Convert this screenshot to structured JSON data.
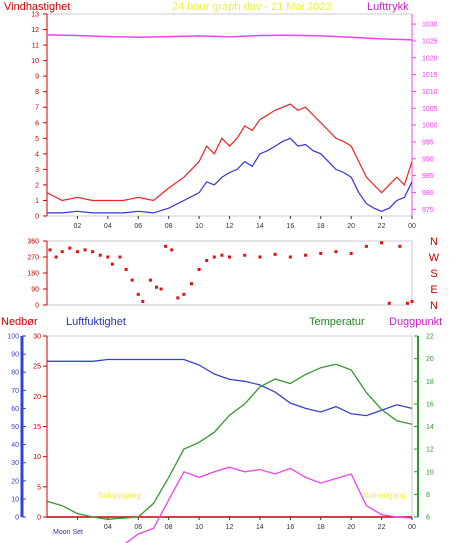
{
  "header": {
    "wind_label": "Vindhastighet",
    "title": "24 hour graph dav - 21 Mai 2023",
    "pressure_label": "Lufttrykk"
  },
  "mid_labels": {
    "rain": "Nedbør",
    "humidity": "Luftfuktighet",
    "temperature": "Temperatur",
    "dewpoint": "Duggpunkt"
  },
  "annotations": {
    "sunrise": "Soloppgang",
    "sunset": "Solnedgang",
    "moonset": "Moon Set"
  },
  "colors": {
    "wind_gust": "#ee2222",
    "wind_avg": "#3333dd",
    "pressure": "#ee44ee",
    "direction": "#dd1111",
    "humidity": "#3344cc",
    "temperature": "#339933",
    "dewpoint": "#ee44ee",
    "rain": "#cc0000",
    "axis_left": "#cc0000",
    "axis_right": "#ee44ee",
    "axis_blue": "#3344cc",
    "axis_green": "#339933",
    "annotation": "#eeee44"
  },
  "chart_data": [
    {
      "type": "line",
      "title": "24 hour graph dav - 21 Mai 2023",
      "x_ticks": [
        "02",
        "04",
        "06",
        "08",
        "10",
        "12",
        "14",
        "16",
        "18",
        "20",
        "22",
        "00"
      ],
      "xlim": [
        0,
        24
      ],
      "y_left_label": "Vindhastighet",
      "y_left_ticks": [
        0,
        1,
        2,
        3,
        4,
        5,
        6,
        7,
        8,
        9,
        10,
        11,
        12,
        13
      ],
      "ylim_left": [
        0,
        13
      ],
      "y_right_label": "Lufttrykk",
      "y_right_ticks": [
        975,
        980,
        985,
        990,
        995,
        1000,
        1005,
        1010,
        1015,
        1020,
        1025,
        1030
      ],
      "ylim_right": [
        973,
        1033
      ],
      "series": [
        {
          "name": "Lufttrykk",
          "axis": "right",
          "x": [
            0,
            2,
            4,
            6,
            8,
            10,
            12,
            14,
            16,
            18,
            20,
            22,
            24
          ],
          "values": [
            1026.8,
            1026.6,
            1026.3,
            1026.1,
            1026.3,
            1026.5,
            1026.2,
            1026.6,
            1026.7,
            1026.5,
            1026.1,
            1025.6,
            1025.3
          ]
        },
        {
          "axis": "left",
          "x": [
            0,
            1,
            2,
            3,
            4,
            5,
            6,
            7,
            8,
            9,
            10,
            10.5,
            11,
            11.5,
            12,
            12.5,
            13,
            13.5,
            14,
            14.5,
            15,
            15.5,
            16,
            16.5,
            17,
            17.5,
            18,
            18.5,
            19,
            19.5,
            20,
            20.5,
            21,
            21.5,
            22,
            22.5,
            23,
            23.5,
            24
          ],
          "values": [
            1.5,
            1,
            1.2,
            1,
            1,
            1,
            1.2,
            1,
            1.8,
            2.5,
            3.5,
            4.5,
            4,
            5,
            4.5,
            5,
            5.8,
            5.5,
            6.2,
            6.5,
            6.8,
            7,
            7.2,
            6.8,
            7,
            6.5,
            6,
            5.5,
            5,
            4.8,
            4.5,
            3.5,
            2.5,
            2,
            1.5,
            2,
            2.5,
            2,
            3.5
          ]
        },
        {
          "axis": "left",
          "x": [
            0,
            1,
            2,
            3,
            4,
            5,
            6,
            7,
            8,
            9,
            10,
            10.5,
            11,
            11.5,
            12,
            12.5,
            13,
            13.5,
            14,
            14.5,
            15,
            15.5,
            16,
            16.5,
            17,
            17.5,
            18,
            18.5,
            19,
            19.5,
            20,
            20.5,
            21,
            21.5,
            22,
            22.5,
            23,
            23.5,
            24
          ],
          "values": [
            0.2,
            0.2,
            0.3,
            0.2,
            0.2,
            0.2,
            0.3,
            0.2,
            0.5,
            1,
            1.5,
            2.2,
            2,
            2.5,
            2.8,
            3,
            3.5,
            3.2,
            4,
            4.2,
            4.5,
            4.8,
            5,
            4.5,
            4.6,
            4.2,
            4,
            3.5,
            3,
            2.8,
            2.5,
            1.5,
            0.8,
            0.5,
            0.3,
            0.5,
            1,
            1.2,
            2.2
          ]
        }
      ]
    },
    {
      "type": "scatter",
      "y_left_ticks": [
        0,
        90,
        180,
        270,
        360
      ],
      "ylim_left": [
        0,
        360
      ],
      "y_right_ticks": [
        "N",
        "W",
        "S",
        "E",
        "N"
      ],
      "series": [
        {
          "x": [
            0.2,
            0.6,
            1.0,
            1.5,
            2.0,
            2.5,
            3.0,
            3.5,
            4.0,
            4.3,
            4.8,
            5.2,
            5.6,
            6.0,
            6.3,
            6.8,
            7.2,
            7.5,
            7.8,
            8.2,
            8.6,
            9.0,
            9.5,
            10.0,
            10.5,
            11.0,
            11.5,
            12.0,
            13.0,
            14.0,
            15.0,
            16.0,
            17.0,
            18.0,
            19.0,
            20.0,
            21.0,
            22.0,
            22.5,
            23.2,
            23.7,
            24.0
          ],
          "values": [
            310,
            270,
            300,
            320,
            300,
            310,
            300,
            280,
            270,
            230,
            270,
            200,
            140,
            60,
            20,
            140,
            100,
            90,
            330,
            310,
            40,
            60,
            120,
            200,
            250,
            270,
            280,
            270,
            280,
            270,
            285,
            270,
            280,
            290,
            300,
            290,
            330,
            350,
            10,
            330,
            10,
            20
          ]
        }
      ]
    },
    {
      "type": "line",
      "x_ticks": [
        "Moon Set",
        "04",
        "06",
        "08",
        "10",
        "12",
        "14",
        "16",
        "18",
        "20",
        "22",
        "00"
      ],
      "xlim": [
        0,
        24
      ],
      "y_rain_label": "Nedbør",
      "y_rain_ticks": [
        0,
        5,
        10,
        15,
        20,
        25,
        30
      ],
      "ylim_rain": [
        0,
        30
      ],
      "y_humidity_label": "Luftfuktighet",
      "y_humidity_ticks": [
        0,
        10,
        20,
        30,
        40,
        50,
        60,
        70,
        80,
        90,
        100
      ],
      "ylim_humidity": [
        0,
        100
      ],
      "y_temp_label": "Temperatur",
      "y_temp_ticks": [
        6,
        8,
        10,
        12,
        14,
        16,
        18,
        20,
        22
      ],
      "ylim_temp": [
        6,
        22
      ],
      "series": [
        {
          "name": "Luftfuktighet",
          "axis": "humidity",
          "x": [
            0,
            1,
            2,
            3,
            4,
            5,
            6,
            7,
            8,
            9,
            10,
            11,
            12,
            13,
            14,
            15,
            16,
            17,
            18,
            19,
            20,
            21,
            22,
            23,
            24
          ],
          "values": [
            86,
            86,
            86,
            86,
            87,
            87,
            87,
            87,
            87,
            87,
            84,
            79,
            76,
            75,
            73,
            69,
            63,
            60,
            58,
            61,
            57,
            56,
            59,
            62,
            60
          ]
        },
        {
          "name": "Temperatur",
          "axis": "temp",
          "x": [
            0,
            1,
            2,
            3,
            4,
            5,
            6,
            7,
            8,
            9,
            10,
            11,
            12,
            13,
            14,
            15,
            16,
            17,
            18,
            19,
            20,
            21,
            22,
            23,
            24
          ],
          "values": [
            7.4,
            7.0,
            6.3,
            6.0,
            5.8,
            5.9,
            6.0,
            7.2,
            9.5,
            12.0,
            12.6,
            13.5,
            15.0,
            16.0,
            17.5,
            18.2,
            17.8,
            18.6,
            19.2,
            19.5,
            19.0,
            17.0,
            15.5,
            14.5,
            14.2
          ]
        },
        {
          "name": "Duggpunkt",
          "axis": "temp",
          "x": [
            0,
            1,
            2,
            3,
            4,
            5,
            6,
            7,
            8,
            9,
            10,
            11,
            12,
            13,
            14,
            15,
            16,
            17,
            18,
            19,
            20,
            21,
            22,
            23,
            24
          ],
          "values": [
            3.5,
            3.5,
            3.5,
            3.5,
            3.5,
            3.5,
            4.5,
            5.0,
            7.5,
            10.0,
            9.5,
            10.0,
            10.4,
            10.0,
            10.2,
            9.8,
            10.3,
            9.5,
            9.0,
            9.4,
            9.8,
            7.0,
            6.2,
            6.0,
            5.9
          ]
        },
        {
          "name": "Nedbør",
          "axis": "rain",
          "x": [
            0,
            24
          ],
          "values": [
            0,
            0
          ]
        }
      ]
    }
  ]
}
